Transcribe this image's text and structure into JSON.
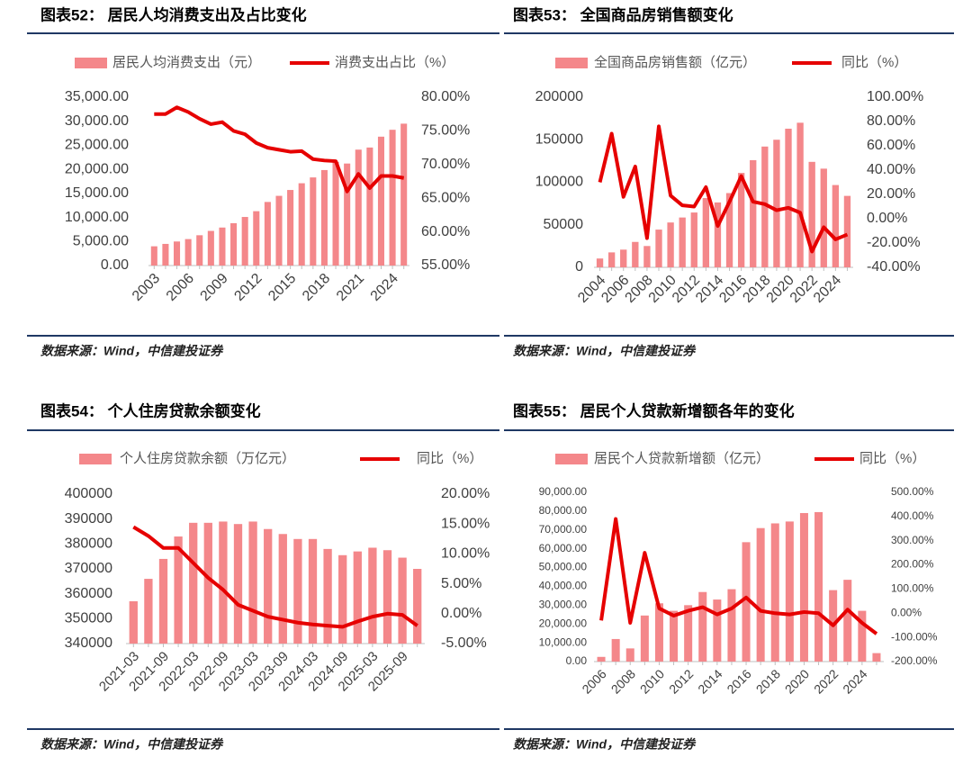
{
  "chart_data": [
    {
      "type": "bar",
      "title": "图表52： 居民人均消费支出及占比变化",
      "source": "数据来源：Wind，中信建投证券",
      "categories": [
        "2003",
        null,
        null,
        "2006",
        null,
        null,
        "2009",
        null,
        null,
        "2012",
        null,
        null,
        "2015",
        null,
        null,
        "2018",
        null,
        null,
        "2021",
        null,
        null,
        "2024",
        null
      ],
      "series": [
        {
          "name": "居民人均消费支出（元）",
          "color": "#f4878a",
          "values": [
            4000,
            4500,
            5000,
            5500,
            6300,
            7200,
            7900,
            8800,
            10100,
            11300,
            13220,
            14491,
            15712,
            17111,
            18322,
            19853,
            21559,
            21210,
            24100,
            24538,
            26796,
            28227,
            29500
          ]
        },
        {
          "name": "消费支出占比（%）",
          "color": "#e60000",
          "axis": "y2",
          "values": [
            77.5,
            77.5,
            78.5,
            77.8,
            76.8,
            76.0,
            76.3,
            75.0,
            74.5,
            73.2,
            72.5,
            72.2,
            71.9,
            72.0,
            70.8,
            70.6,
            70.5,
            66.0,
            68.6,
            66.5,
            68.3,
            68.3,
            68.0
          ]
        }
      ],
      "ylim": [
        0,
        35000
      ],
      "yticks": [
        {
          "value": 0,
          "label": "0.00"
        },
        {
          "value": 5000,
          "label": "5,000.00"
        },
        {
          "value": 10000,
          "label": "10,000.00"
        },
        {
          "value": 15000,
          "label": "15,000.00"
        },
        {
          "value": 20000,
          "label": "20,000.00"
        },
        {
          "value": 25000,
          "label": "25,000.00"
        },
        {
          "value": 30000,
          "label": "30,000.00"
        },
        {
          "value": 35000,
          "label": "35,000.00"
        }
      ],
      "y2lim": [
        55,
        80
      ],
      "y2ticks": [
        {
          "value": 55,
          "label": "55.00%"
        },
        {
          "value": 60,
          "label": "60.00%"
        },
        {
          "value": 65,
          "label": "65.00%"
        },
        {
          "value": 70,
          "label": "70.00%"
        },
        {
          "value": 75,
          "label": "75.00%"
        },
        {
          "value": 80,
          "label": "80.00%"
        }
      ]
    },
    {
      "type": "bar",
      "title": "图表53： 全国商品房销售额变化",
      "source": "数据来源：Wind，中信建投证券",
      "categories": [
        "2004",
        null,
        "2006",
        null,
        "2008",
        null,
        "2010",
        null,
        "2012",
        null,
        "2014",
        null,
        "2016",
        null,
        "2018",
        null,
        "2020",
        null,
        "2022",
        null,
        "2024",
        null
      ],
      "series": [
        {
          "name": "全国商品房销售额（亿元）",
          "color": "#f4878a",
          "values": [
            10376,
            17576,
            20826,
            29889,
            25068,
            44355,
            52721,
            58589,
            64456,
            81428,
            76292,
            87281,
            111000,
            126000,
            142000,
            150000,
            163000,
            170000,
            124000,
            116000,
            96750,
            84000
          ]
        },
        {
          "name": "同比（%）",
          "color": "#e60000",
          "axis": "y2",
          "values": [
            30,
            70,
            18,
            43,
            -16,
            76,
            19,
            11,
            10,
            26,
            -6,
            14,
            35,
            14,
            12,
            7,
            9,
            5,
            -27,
            -7,
            -17,
            -13
          ]
        }
      ],
      "ylim": [
        0,
        200000
      ],
      "yticks": [
        0,
        50000,
        100000,
        150000,
        200000
      ],
      "y2lim": [
        -40,
        100
      ],
      "y2ticks": [
        {
          "value": -40,
          "label": "-40.00%"
        },
        {
          "value": -20,
          "label": "-20.00%"
        },
        {
          "value": 0,
          "label": "0.00%"
        },
        {
          "value": 20,
          "label": "20.00%"
        },
        {
          "value": 40,
          "label": "40.00%"
        },
        {
          "value": 60,
          "label": "60.00%"
        },
        {
          "value": 80,
          "label": "80.00%"
        },
        {
          "value": 100,
          "label": "100.00%"
        }
      ]
    },
    {
      "type": "bar",
      "title": "图表54： 个人住房贷款余额变化",
      "source": "数据来源：Wind，中信建投证券",
      "categories": [
        "2021-03",
        null,
        "2021-09",
        null,
        "2022-03",
        null,
        "2022-09",
        null,
        "2023-03",
        null,
        "2023-09",
        null,
        "2024-03",
        null,
        "2024-09",
        null,
        "2025-03",
        null,
        "2025-09",
        null
      ],
      "series": [
        {
          "name": "个人住房贷款余额（万亿元）",
          "color": "#f4878a",
          "values": [
            357000,
            366000,
            374000,
            383000,
            388500,
            388500,
            389000,
            388000,
            389000,
            386000,
            384000,
            382000,
            382000,
            378000,
            375500,
            377000,
            378500,
            377500,
            374500,
            370000
          ]
        },
        {
          "name": "同比（%）",
          "color": "#e60000",
          "axis": "y2",
          "values": [
            14.5,
            13,
            11,
            11,
            8.5,
            6,
            4,
            1.5,
            0.5,
            -0.5,
            -1,
            -1.5,
            -1.8,
            -2,
            -2.2,
            -1.3,
            -0.5,
            0,
            -0.2,
            -2
          ]
        }
      ],
      "ylim": [
        340000,
        400000
      ],
      "yticks": [
        340000,
        350000,
        360000,
        370000,
        380000,
        390000,
        400000
      ],
      "y2lim": [
        -5,
        20
      ],
      "y2ticks": [
        {
          "value": -5,
          "label": "-5.00%"
        },
        {
          "value": 0,
          "label": "0.00%"
        },
        {
          "value": 5,
          "label": "5.00%"
        },
        {
          "value": 10,
          "label": "10.00%"
        },
        {
          "value": 15,
          "label": "15.00%"
        },
        {
          "value": 20,
          "label": "20.00%"
        }
      ]
    },
    {
      "type": "bar",
      "title": "图表55： 居民个人贷款新增额各年的变化",
      "source": "数据来源：Wind，中信建投证券",
      "categories": [
        "2006",
        null,
        "2008",
        null,
        "2010",
        null,
        "2012",
        null,
        "2014",
        null,
        "2016",
        null,
        "2018",
        null,
        "2020",
        null,
        "2022",
        null,
        "2024",
        null
      ],
      "series": [
        {
          "name": "居民个人贷款新增额（亿元）",
          "color": "#f4878a",
          "values": [
            2500,
            12000,
            7000,
            24500,
            31000,
            27000,
            30000,
            37000,
            33000,
            38500,
            63500,
            71000,
            73500,
            74500,
            79000,
            79500,
            38000,
            43500,
            27000,
            4500
          ]
        },
        {
          "name": "同比（%）",
          "color": "#e60000",
          "axis": "y2",
          "values": [
            -30,
            390,
            -40,
            250,
            20,
            -10,
            10,
            25,
            -5,
            20,
            65,
            10,
            0,
            -5,
            5,
            0,
            -50,
            15,
            -40,
            -85
          ]
        }
      ],
      "ylim": [
        0,
        90000
      ],
      "yticks": [
        {
          "value": 0,
          "label": "0.00"
        },
        {
          "value": 10000,
          "label": "10,000.00"
        },
        {
          "value": 20000,
          "label": "20,000.00"
        },
        {
          "value": 30000,
          "label": "30,000.00"
        },
        {
          "value": 40000,
          "label": "40,000.00"
        },
        {
          "value": 50000,
          "label": "50,000.00"
        },
        {
          "value": 60000,
          "label": "60,000.00"
        },
        {
          "value": 70000,
          "label": "70,000.00"
        },
        {
          "value": 80000,
          "label": "80,000.00"
        },
        {
          "value": 90000,
          "label": "90,000.00"
        }
      ],
      "y2lim": [
        -200,
        500
      ],
      "y2ticks": [
        {
          "value": -200,
          "label": "-200.00%"
        },
        {
          "value": -100,
          "label": "-100.00%"
        },
        {
          "value": 0,
          "label": "0.00%"
        },
        {
          "value": 100,
          "label": "100.00%"
        },
        {
          "value": 200,
          "label": "200.00%"
        },
        {
          "value": 300,
          "label": "300.00%"
        },
        {
          "value": 400,
          "label": "400.00%"
        },
        {
          "value": 500,
          "label": "500.00%"
        }
      ]
    }
  ]
}
